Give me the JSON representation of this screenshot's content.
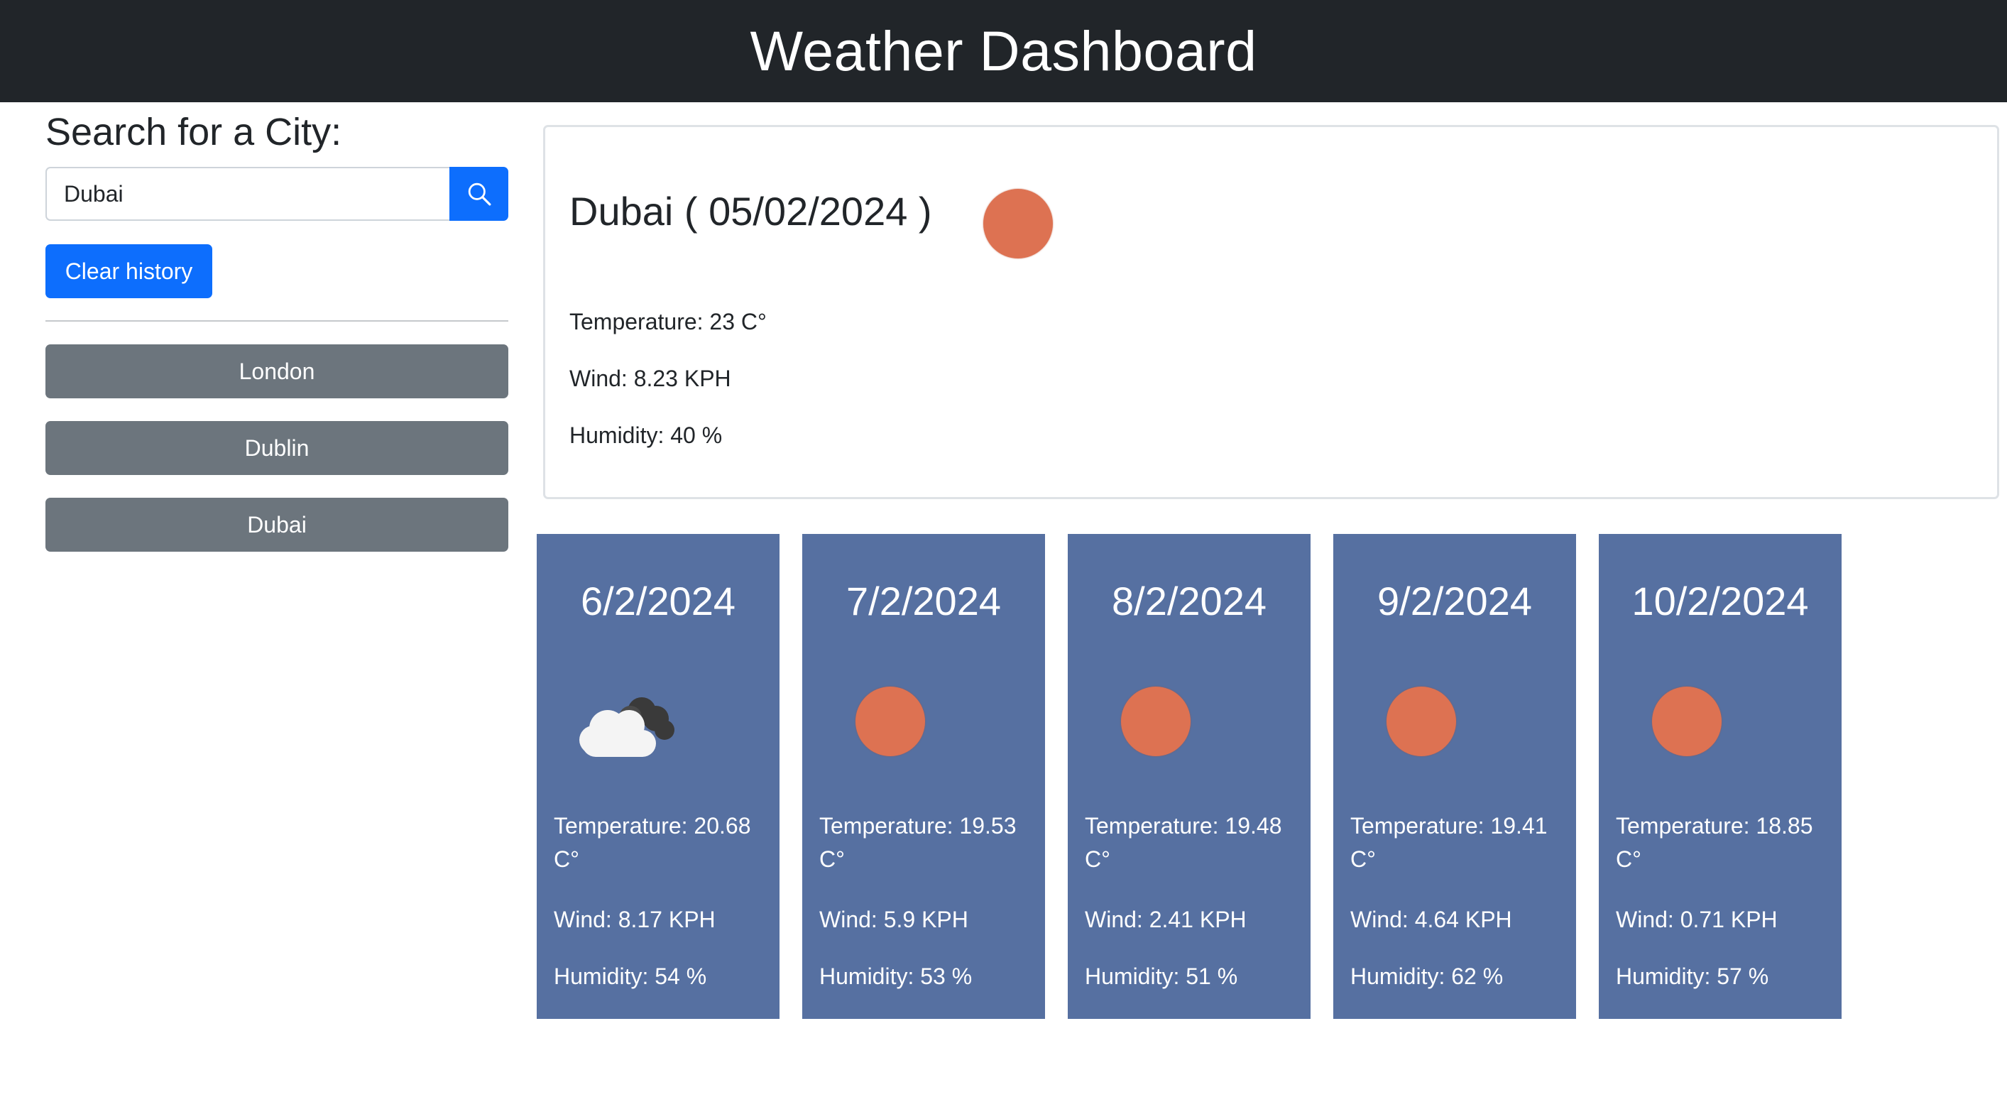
{
  "header": {
    "title": "Weather Dashboard"
  },
  "sidebar": {
    "heading": "Search for a City:",
    "search": {
      "value": "Dubai",
      "placeholder": ""
    },
    "search_button_icon": "search-icon",
    "clear_label": "Clear history",
    "history": [
      "London",
      "Dublin",
      "Dubai"
    ]
  },
  "current": {
    "title": "Dubai ( 05/02/2024 )",
    "icon": "sun-icon",
    "temperature": "Temperature: 23 C°",
    "wind": "Wind: 8.23 KPH",
    "humidity": "Humidity: 40 %"
  },
  "forecast": [
    {
      "date": "6/2/2024",
      "icon": "cloud-icon",
      "temperature": "Temperature: 20.68 C°",
      "wind": "Wind: 8.17 KPH",
      "humidity": "Humidity: 54 %"
    },
    {
      "date": "7/2/2024",
      "icon": "sun-icon",
      "temperature": "Temperature: 19.53 C°",
      "wind": "Wind: 5.9 KPH",
      "humidity": "Humidity: 53 %"
    },
    {
      "date": "8/2/2024",
      "icon": "sun-icon",
      "temperature": "Temperature: 19.48 C°",
      "wind": "Wind: 2.41 KPH",
      "humidity": "Humidity: 51 %"
    },
    {
      "date": "9/2/2024",
      "icon": "sun-icon",
      "temperature": "Temperature: 19.41 C°",
      "wind": "Wind: 4.64 KPH",
      "humidity": "Humidity: 62 %"
    },
    {
      "date": "10/2/2024",
      "icon": "sun-icon",
      "temperature": "Temperature: 18.85 C°",
      "wind": "Wind: 0.71 KPH",
      "humidity": "Humidity: 57 %"
    }
  ],
  "colors": {
    "navbar": "#212529",
    "primary": "#0d6efd",
    "secondary": "#6c757d",
    "card": "#5670a1",
    "sun": "#dd7252"
  }
}
